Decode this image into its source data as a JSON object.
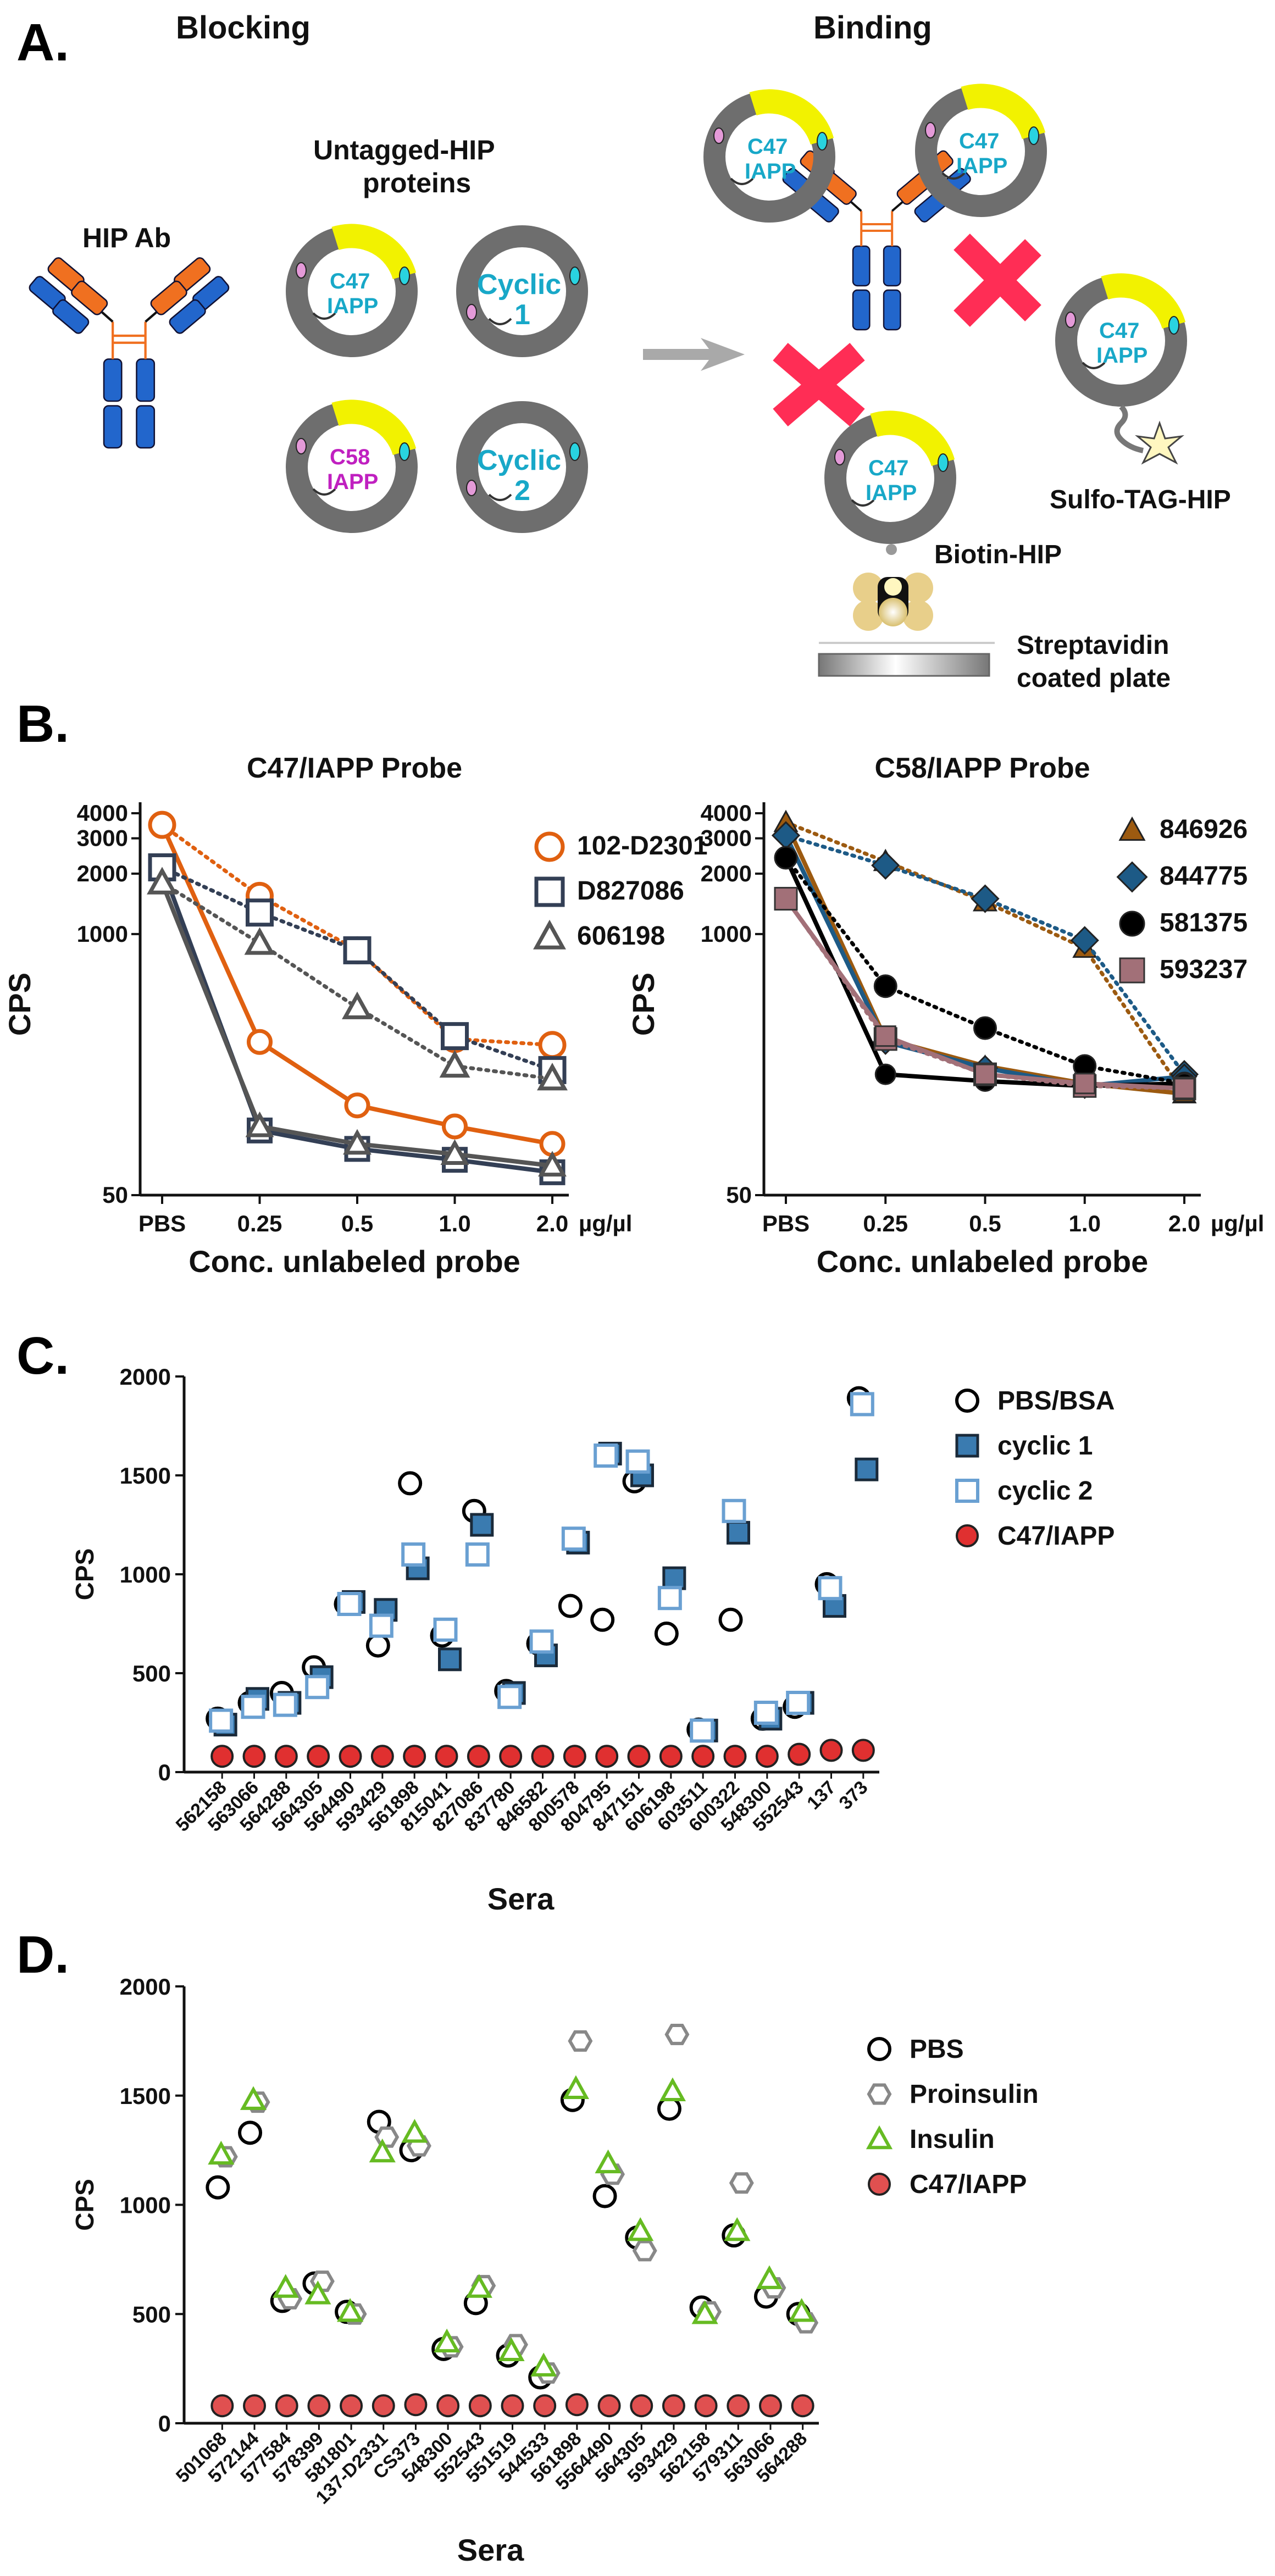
{
  "panels": {
    "a": "A.",
    "b": "B.",
    "c": "C.",
    "d": "D."
  },
  "schematic": {
    "blocking_title": "Blocking",
    "binding_title": "Binding",
    "hip_ab": "HIP Ab",
    "untagged_line1": "Untagged-HIP",
    "untagged_line2": "proteins",
    "c47": "C47",
    "c58": "C58",
    "iapp": "IAPP",
    "cyclic": "Cyclic",
    "one": "1",
    "two": "2",
    "sulfo": "Sulfo-TAG-HIP",
    "biotin": "Biotin-HIP",
    "strep1": "Streptavidin",
    "strep2": "coated plate",
    "colors": {
      "yellow": "#f2f200",
      "ring": "#6e6e6e",
      "cyan": "#18a8c8",
      "cross": "#ff2d55",
      "ab_blue": "#2266cc",
      "ab_orange": "#f07020"
    }
  },
  "chart_data": [
    {
      "id": "b_left",
      "type": "line",
      "title": "C47/IAPP Probe",
      "xlabel": "Conc. unlabeled probe",
      "ylabel": "CPS",
      "unit": "µg/µl",
      "yscale": "log",
      "ylim": [
        50,
        4000
      ],
      "yticks": [
        "4000",
        "3000",
        "2000",
        "1000",
        "50"
      ],
      "categories": [
        "PBS",
        "0.25",
        "0.5",
        "1.0",
        "2.0"
      ],
      "series": [
        {
          "name": "102-D2301",
          "color": "#e06010",
          "marker": "circle",
          "dotted": [
            3500,
            1550,
            830,
            300,
            280
          ],
          "solid": [
            3500,
            290,
            140,
            110,
            90
          ]
        },
        {
          "name": "D827086",
          "color": "#333f55",
          "marker": "square",
          "dotted": [
            2150,
            1280,
            830,
            310,
            210
          ],
          "solid": [
            2150,
            105,
            85,
            75,
            65
          ]
        },
        {
          "name": "606198",
          "color": "#555555",
          "marker": "triangle",
          "dotted": [
            1800,
            900,
            430,
            220,
            190
          ],
          "solid": [
            1800,
            110,
            90,
            80,
            70
          ]
        }
      ]
    },
    {
      "id": "b_right",
      "type": "line",
      "title": "C58/IAPP Probe",
      "xlabel": "Conc. unlabeled probe",
      "ylabel": "CPS",
      "unit": "µg/µl",
      "yscale": "log",
      "ylim": [
        50,
        4000
      ],
      "yticks": [
        "4000",
        "3000",
        "2000",
        "1000",
        "50"
      ],
      "categories": [
        "PBS",
        "0.25",
        "0.5",
        "1.0",
        "2.0"
      ],
      "series": [
        {
          "name": "846926",
          "color": "#9c5a10",
          "marker": "triangle",
          "dotted": [
            3600,
            2300,
            1450,
            850,
            160
          ],
          "solid": [
            3600,
            300,
            220,
            180,
            160
          ]
        },
        {
          "name": "844775",
          "color": "#1d5a86",
          "marker": "diamond",
          "dotted": [
            3100,
            2200,
            1500,
            930,
            200
          ],
          "solid": [
            3100,
            290,
            215,
            175,
            195
          ]
        },
        {
          "name": "581375",
          "color": "#000000",
          "marker": "circle",
          "dotted": [
            2400,
            550,
            340,
            220,
            180
          ],
          "solid": [
            2400,
            200,
            185,
            175,
            180
          ]
        },
        {
          "name": "593237",
          "color": "#a27078",
          "marker": "square",
          "dotted": [
            1500,
            300,
            200,
            175,
            170
          ],
          "solid": [
            1500,
            310,
            200,
            180,
            170
          ]
        }
      ]
    },
    {
      "id": "c",
      "type": "scatter",
      "xlabel": "Sera",
      "ylabel": "CPS",
      "ylim": [
        0,
        2000
      ],
      "yticks": [
        "0",
        "500",
        "1000",
        "1500",
        "2000"
      ],
      "categories": [
        "562158",
        "563066",
        "564288",
        "564305",
        "564490",
        "593429",
        "561898",
        "815041",
        "827086",
        "837780",
        "846582",
        "800578",
        "804795",
        "847151",
        "606198",
        "603511",
        "600322",
        "548300",
        "552543",
        "137",
        "373"
      ],
      "series": [
        {
          "name": "PBS/BSA",
          "marker": "open-circle",
          "color": "#000000",
          "values": [
            270,
            350,
            400,
            530,
            850,
            640,
            1460,
            690,
            1320,
            410,
            650,
            840,
            770,
            1470,
            700,
            215,
            770,
            270,
            330,
            950,
            1890
          ]
        },
        {
          "name": "cyclic 1",
          "marker": "filled-square",
          "color": "#3a7bb0",
          "values": [
            240,
            370,
            350,
            480,
            860,
            820,
            1030,
            570,
            1250,
            400,
            590,
            1160,
            1610,
            1500,
            980,
            210,
            1210,
            270,
            350,
            840,
            1530
          ]
        },
        {
          "name": "cyclic 2",
          "marker": "open-square",
          "color": "#6aa0d2",
          "values": [
            260,
            330,
            340,
            430,
            850,
            740,
            1100,
            720,
            1100,
            380,
            660,
            1180,
            1600,
            1570,
            880,
            210,
            1320,
            300,
            350,
            930,
            1860
          ]
        },
        {
          "name": "C47/IAPP",
          "marker": "red-circle",
          "color": "#e03030",
          "values": [
            80,
            80,
            80,
            80,
            80,
            80,
            80,
            80,
            80,
            80,
            80,
            80,
            80,
            80,
            80,
            80,
            80,
            80,
            90,
            110,
            110
          ]
        }
      ]
    },
    {
      "id": "d",
      "type": "scatter",
      "xlabel": "Sera",
      "ylabel": "CPS",
      "ylim": [
        0,
        2000
      ],
      "yticks": [
        "0",
        "500",
        "1000",
        "1500",
        "2000"
      ],
      "categories": [
        "501068",
        "572144",
        "577584",
        "578399",
        "581801",
        "137-D2331",
        "CS373",
        "548300",
        "552543",
        "551519",
        "544533",
        "561898",
        "5564490",
        "564305",
        "593429",
        "562158",
        "579311",
        "563066",
        "564288"
      ],
      "series": [
        {
          "name": "PBS",
          "marker": "open-circle",
          "color": "#000000",
          "values": [
            1080,
            1330,
            560,
            640,
            510,
            1380,
            1250,
            340,
            550,
            310,
            210,
            1480,
            1040,
            850,
            1440,
            530,
            860,
            580,
            500
          ]
        },
        {
          "name": "Proinsulin",
          "marker": "hexagon",
          "color": "#888888",
          "values": [
            1220,
            1470,
            570,
            650,
            500,
            1310,
            1270,
            350,
            630,
            360,
            230,
            1750,
            1140,
            790,
            1780,
            510,
            1100,
            620,
            460
          ]
        },
        {
          "name": "Insulin",
          "marker": "triangle",
          "color": "#66bb22",
          "values": [
            1230,
            1480,
            620,
            590,
            510,
            1240,
            1330,
            370,
            620,
            330,
            260,
            1530,
            1190,
            880,
            1520,
            500,
            880,
            660,
            510
          ]
        },
        {
          "name": "C47/IAPP",
          "marker": "red-circle",
          "color": "#e05050",
          "values": [
            80,
            80,
            80,
            80,
            80,
            80,
            85,
            80,
            80,
            80,
            80,
            85,
            80,
            80,
            80,
            80,
            80,
            80,
            80
          ]
        }
      ]
    }
  ]
}
